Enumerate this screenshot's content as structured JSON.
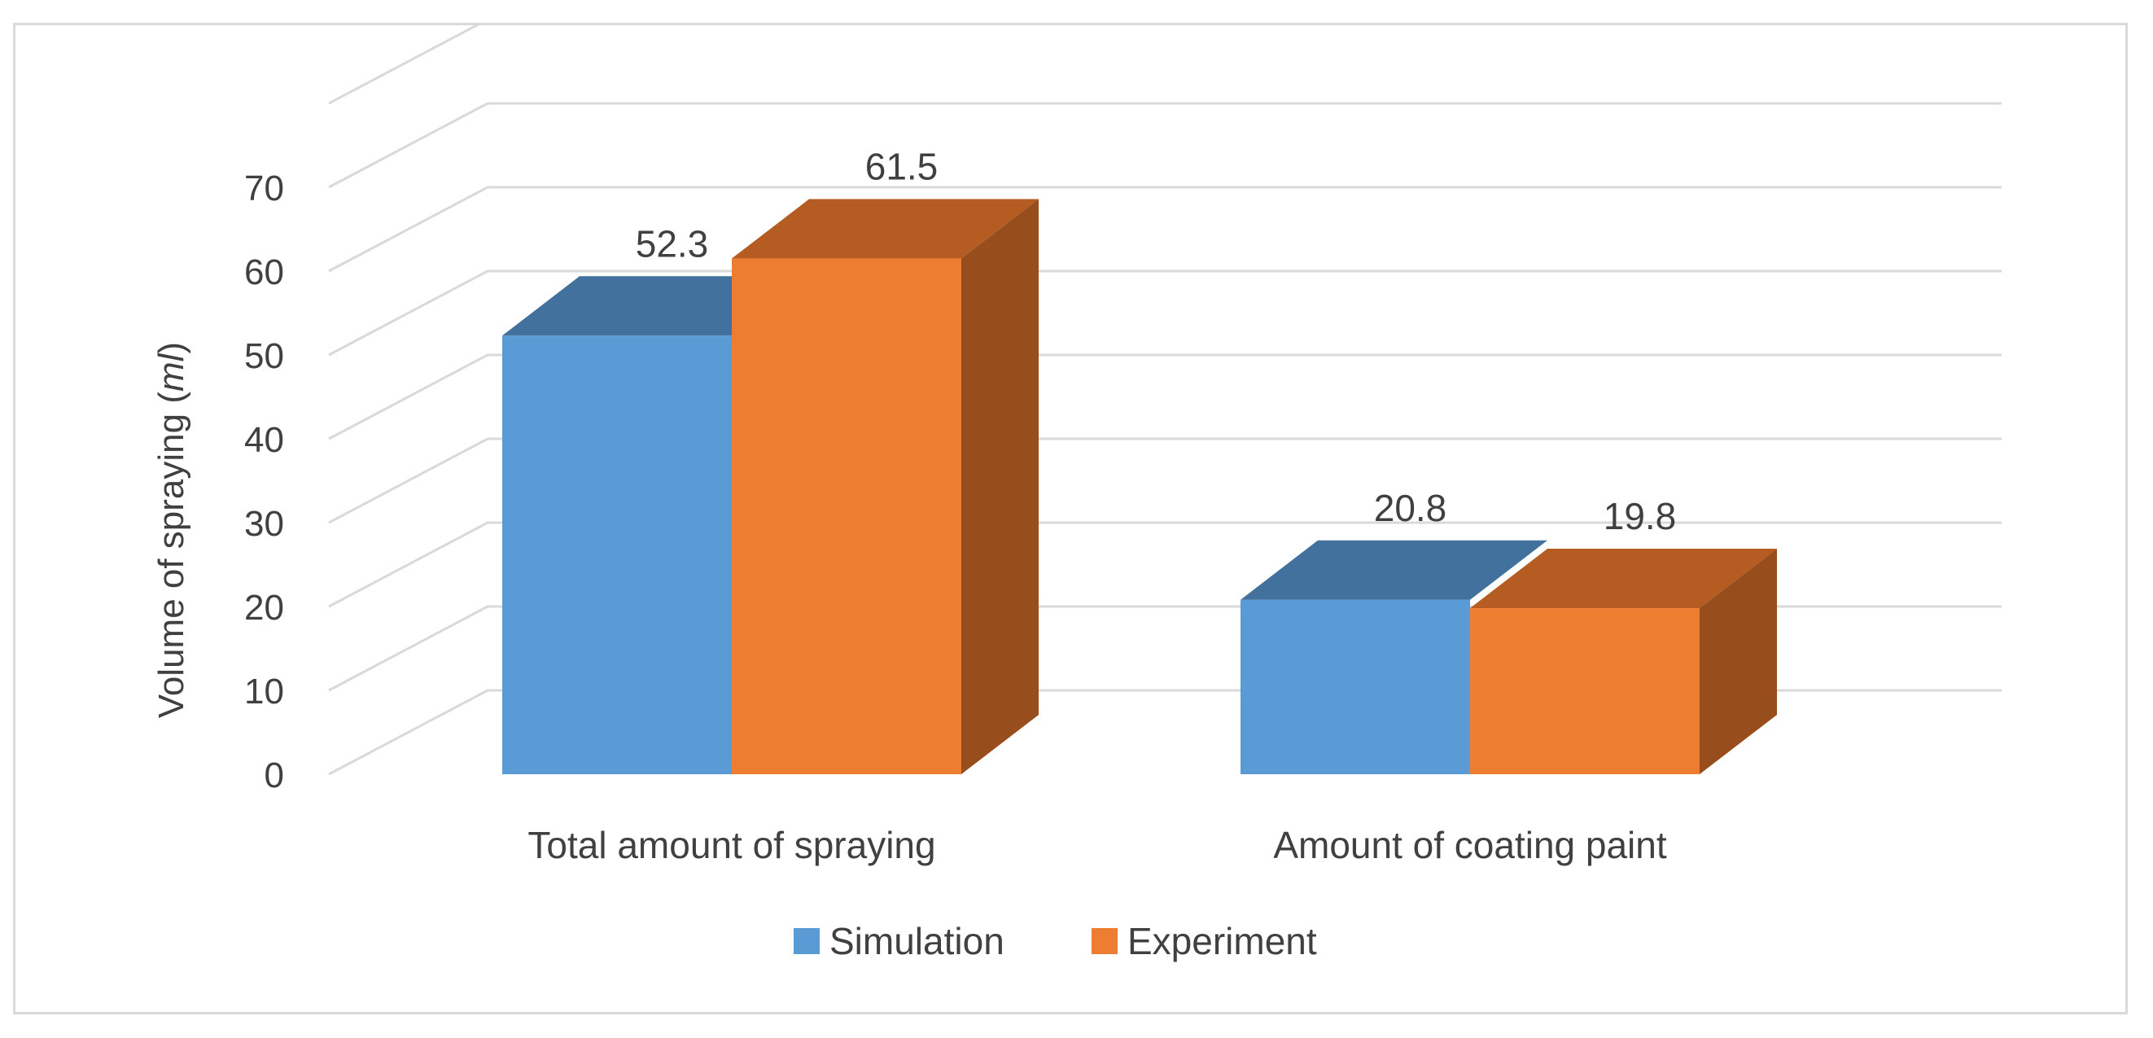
{
  "chart_data": {
    "type": "bar",
    "style": "3d-clustered-column",
    "categories": [
      "Total amount of spraying",
      "Amount of coating paint"
    ],
    "series": [
      {
        "name": "Simulation",
        "values": [
          52.3,
          20.8
        ],
        "color": "#5b9bd5",
        "top_color": "#41719c",
        "side_color": "#41719c"
      },
      {
        "name": "Experiment",
        "values": [
          61.5,
          19.8
        ],
        "color": "#ed7d31",
        "top_color": "#b55c22",
        "side_color": "#984d1c"
      }
    ],
    "data_labels": [
      [
        "52.3",
        "20.8"
      ],
      [
        "61.5",
        "19.8"
      ]
    ],
    "title": "",
    "xlabel": "",
    "ylabel_prefix": "Volume of spraying (",
    "ylabel_unit": "ml",
    "ylabel_suffix": ")",
    "ylim": [
      0,
      80
    ],
    "yticks": [
      0,
      10,
      20,
      30,
      40,
      50,
      60,
      70
    ],
    "ytick_labels": [
      "0",
      "10",
      "20",
      "30",
      "40",
      "50",
      "60",
      "70"
    ],
    "grid": true,
    "legend": "bottom-center",
    "gridline_color": "#d9d9d9",
    "text_color": "#404040"
  }
}
